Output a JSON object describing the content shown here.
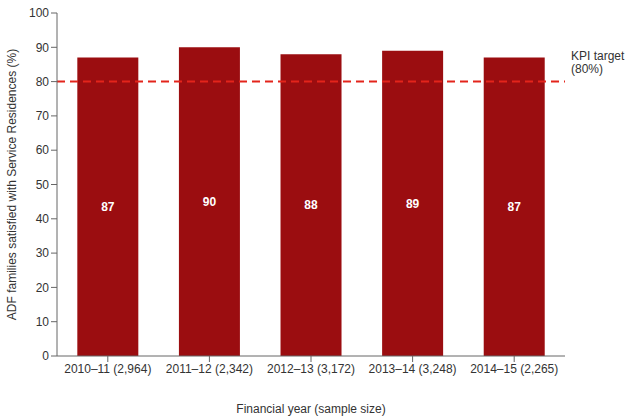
{
  "chart_data": {
    "type": "bar",
    "categories": [
      "2010–11 (2,964)",
      "2011–12 (2,342)",
      "2012–13 (3,172)",
      "2013–14 (3,248)",
      "2014–15 (2,265)"
    ],
    "values": [
      87,
      90,
      88,
      89,
      87
    ],
    "color": "#9b0d10",
    "x_label": "Financial year (sample size)",
    "y_label": "ADF families satisfied with Service Residences (%)",
    "ylim": [
      0,
      100
    ],
    "yticks": [
      0,
      10,
      20,
      30,
      40,
      50,
      60,
      70,
      80,
      90,
      100
    ],
    "grid": false,
    "data_labels": true,
    "target": {
      "value": 80,
      "label_lines": [
        "KPI target",
        "(80%)"
      ],
      "color": "#e3241b",
      "line_style": "dashed"
    }
  }
}
